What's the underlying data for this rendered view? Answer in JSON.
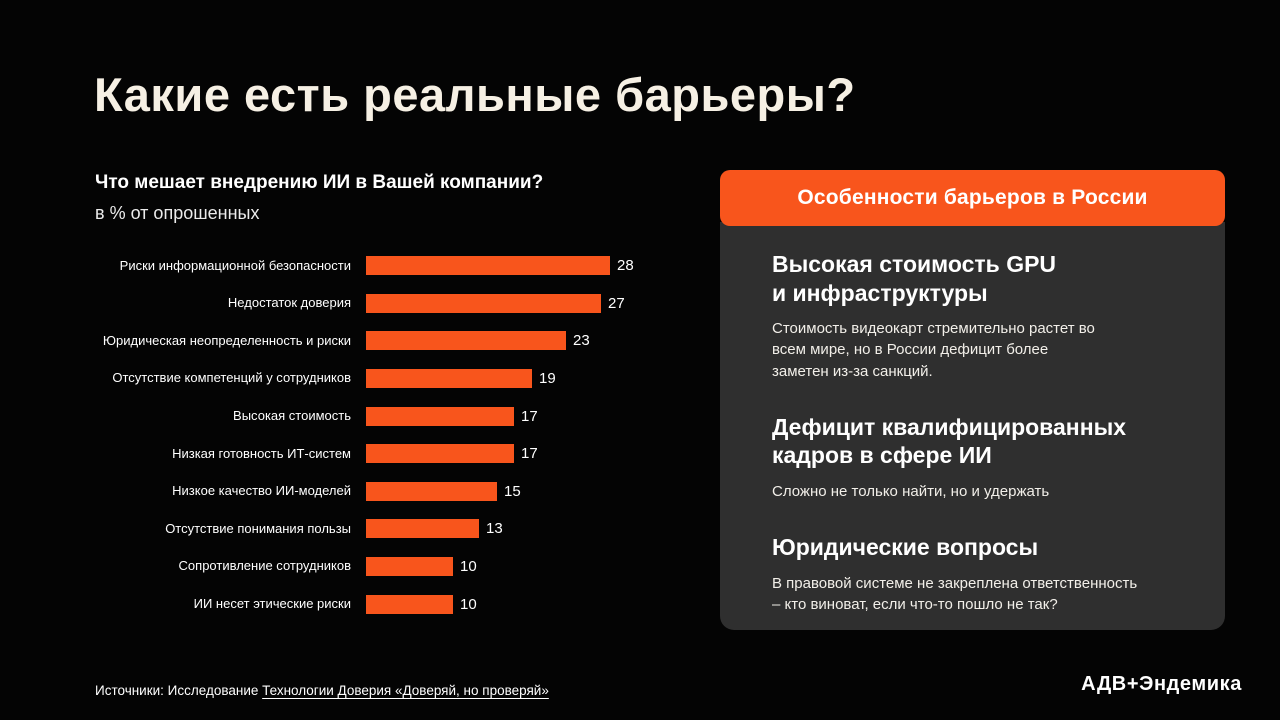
{
  "slide": {
    "title": "Какие есть реальные барьеры?",
    "background": "#040404",
    "accent": "#F8551C",
    "title_color": "#F6F0E4"
  },
  "chart_data": {
    "type": "bar",
    "orientation": "horizontal",
    "title": "Что мешает внедрению ИИ в Вашей компании?",
    "subtitle": "в % от опрошенных",
    "categories": [
      "Риски информационной безопасности",
      "Недостаток доверия",
      "Юридическая неопределенность и риски",
      "Отсутствие компетенций у сотрудников",
      "Высокая стоимость",
      "Низкая готовность ИТ-систем",
      "Низкое качество ИИ-моделей",
      "Отсутствие понимания пользы",
      "Сопротивление сотрудников",
      "ИИ несет этические риски"
    ],
    "values": [
      28,
      27,
      23,
      19,
      17,
      17,
      15,
      13,
      10,
      10
    ],
    "xlim": [
      0,
      30
    ],
    "bar_color": "#F8551C",
    "value_labels": true,
    "grid": false,
    "legend": false
  },
  "panel": {
    "header": "Особенности барьеров в России",
    "background": "#2F2F2F",
    "items": [
      {
        "title": "Высокая стоимость GPU\nи инфраструктуры",
        "body": "Стоимость видеокарт стремительно растет во\nвсем мире, но в России дефицит более\nзаметен из-за санкций."
      },
      {
        "title": "Дефицит квалифицированных\nкадров в сфере ИИ",
        "body": "Сложно не только найти, но и удержать"
      },
      {
        "title": "Юридические вопросы",
        "body": "В правовой системе не закреплена ответственность\n– кто виноват, если что-то пошло не так?"
      }
    ]
  },
  "footer": {
    "source_prefix": "Источники: Исследование ",
    "source_link": "Технологии Доверия «Доверяй, но проверяй»",
    "logo": "АДВ+Эндемика"
  }
}
